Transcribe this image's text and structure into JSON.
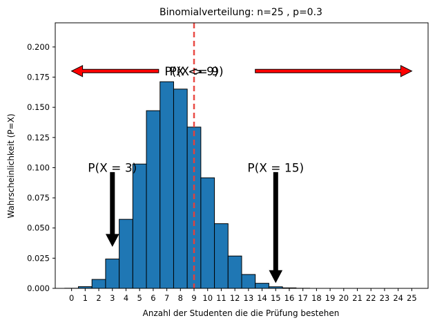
{
  "chart_data": {
    "type": "bar",
    "title": "Binomialverteilung: n=25 , p=0.3",
    "xlabel": "Anzahl der Studenten die die Prüfung bestehen",
    "ylabel": "Wahrscheinlichkeit (P=X)",
    "x_ticks": [
      "0",
      "1",
      "2",
      "3",
      "4",
      "5",
      "6",
      "7",
      "8",
      "9",
      "10",
      "11",
      "12",
      "13",
      "14",
      "15",
      "16",
      "17",
      "18",
      "19",
      "20",
      "21",
      "22",
      "23",
      "24",
      "25"
    ],
    "y_ticks": [
      "0.000",
      "0.025",
      "0.050",
      "0.075",
      "0.100",
      "0.125",
      "0.150",
      "0.175",
      "0.200"
    ],
    "xlim": [
      -1.2,
      26.2
    ],
    "ylim": [
      0,
      0.22
    ],
    "series": [
      {
        "x": [
          0,
          1,
          2,
          3,
          4,
          5,
          6,
          7,
          8,
          9,
          10,
          11,
          12,
          13,
          14,
          15,
          16,
          17,
          18,
          19,
          20,
          21,
          22,
          23,
          24,
          25
        ],
        "values": [
          0.0001,
          0.0014,
          0.0074,
          0.0243,
          0.0572,
          0.103,
          0.1472,
          0.1712,
          0.1651,
          0.1336,
          0.0916,
          0.0536,
          0.0268,
          0.0115,
          0.0042,
          0.0013,
          0.0004,
          0.0001,
          0.0,
          0.0,
          0.0,
          0.0,
          0.0,
          0.0,
          0.0,
          0.0
        ],
        "color": "#1f77b4"
      }
    ],
    "vline": {
      "x": 9,
      "color": "#e8413a"
    },
    "annotations": [
      {
        "id": "left-range",
        "text": "P(X <= 9)",
        "x": 9,
        "y": 0.18,
        "arrow_to": [
          0,
          0.18
        ]
      },
      {
        "id": "right-range",
        "text": "P(X > 9)",
        "x": 9,
        "y": 0.18,
        "arrow_to": [
          25,
          0.18
        ]
      },
      {
        "id": "p3",
        "text": "P(X = 3)",
        "x": 3,
        "y": 0.1,
        "arrow_to": [
          3,
          0.035
        ]
      },
      {
        "id": "p15",
        "text": "P(X = 15)",
        "x": 15,
        "y": 0.1,
        "arrow_to": [
          15,
          0.005
        ]
      }
    ],
    "grid": false,
    "legend": "none"
  }
}
